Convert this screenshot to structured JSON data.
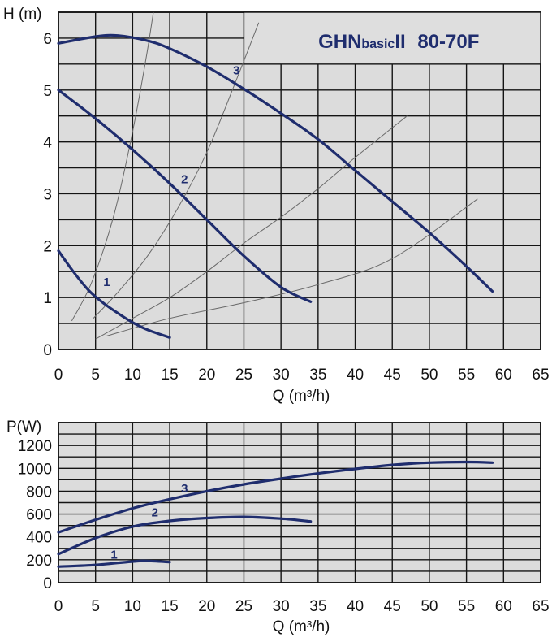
{
  "colors": {
    "plot_bg": "#dcdcdc",
    "grid": "#141414",
    "curve": "#1f2d6e",
    "system_curve": "#6a6a6a",
    "title": "#1f2d6e",
    "title_box": "#dedede"
  },
  "title": {
    "prefix": "GHN",
    "small": "basic",
    "suffix": "II",
    "model": "80-70F"
  },
  "chart_data": [
    {
      "type": "line",
      "name": "head",
      "xlabel": "Q (m³/h)",
      "ylabel": "H (m)",
      "xlim": [
        0,
        65
      ],
      "ylim": [
        0,
        6.5
      ],
      "xticks": [
        0,
        5,
        10,
        15,
        20,
        25,
        30,
        35,
        40,
        45,
        50,
        55,
        60,
        65
      ],
      "yticks": [
        0,
        1,
        2,
        3,
        4,
        5,
        6
      ],
      "grid": true,
      "series": [
        {
          "name": "1",
          "label_at": [
            6.5,
            1.22
          ],
          "points": [
            [
              0,
              1.9
            ],
            [
              2,
              1.5
            ],
            [
              4,
              1.15
            ],
            [
              6,
              0.9
            ],
            [
              8,
              0.7
            ],
            [
              10,
              0.52
            ],
            [
              12,
              0.38
            ],
            [
              15,
              0.23
            ]
          ]
        },
        {
          "name": "2",
          "label_at": [
            17,
            3.2
          ],
          "points": [
            [
              0,
              5.0
            ],
            [
              5,
              4.45
            ],
            [
              10,
              3.85
            ],
            [
              15,
              3.2
            ],
            [
              20,
              2.5
            ],
            [
              25,
              1.8
            ],
            [
              30,
              1.2
            ],
            [
              34,
              0.92
            ]
          ]
        },
        {
          "name": "3",
          "label_at": [
            24,
            5.3
          ],
          "points": [
            [
              0,
              5.9
            ],
            [
              5,
              6.03
            ],
            [
              8,
              6.05
            ],
            [
              12,
              5.95
            ],
            [
              15,
              5.8
            ],
            [
              20,
              5.45
            ],
            [
              25,
              5.02
            ],
            [
              30,
              4.55
            ],
            [
              35,
              4.05
            ],
            [
              40,
              3.45
            ],
            [
              45,
              2.85
            ],
            [
              50,
              2.25
            ],
            [
              55,
              1.6
            ],
            [
              58.5,
              1.12
            ]
          ]
        }
      ],
      "system_curves": [
        [
          [
            1.8,
            0.55
          ],
          [
            4.5,
            1.3
          ],
          [
            7.5,
            2.6
          ],
          [
            10,
            4.2
          ],
          [
            11.8,
            5.6
          ],
          [
            12.8,
            6.5
          ]
        ],
        [
          [
            4.7,
            0.6
          ],
          [
            8,
            1.1
          ],
          [
            12,
            1.8
          ],
          [
            16,
            2.7
          ],
          [
            20,
            3.8
          ],
          [
            24,
            5.2
          ],
          [
            27,
            6.3
          ]
        ],
        [
          [
            5,
            0.2
          ],
          [
            10,
            0.6
          ],
          [
            15,
            1.0
          ],
          [
            20,
            1.5
          ],
          [
            25,
            2.05
          ],
          [
            30,
            2.55
          ],
          [
            35,
            3.1
          ],
          [
            40,
            3.7
          ],
          [
            47,
            4.5
          ]
        ],
        [
          [
            6.5,
            0.26
          ],
          [
            15,
            0.6
          ],
          [
            25,
            0.9
          ],
          [
            35,
            1.25
          ],
          [
            45,
            1.75
          ],
          [
            56.5,
            2.9
          ]
        ]
      ]
    },
    {
      "type": "line",
      "name": "power",
      "xlabel": "Q (m³/h)",
      "ylabel": "P(W)",
      "xlim": [
        0,
        65
      ],
      "ylim": [
        0,
        1400
      ],
      "xticks": [
        0,
        5,
        10,
        15,
        20,
        25,
        30,
        35,
        40,
        45,
        50,
        55,
        60,
        65
      ],
      "yticks": [
        0,
        200,
        400,
        600,
        800,
        1000,
        1200
      ],
      "grid": true,
      "series": [
        {
          "name": "1",
          "label_at": [
            7.5,
            210
          ],
          "points": [
            [
              0,
              140
            ],
            [
              5,
              155
            ],
            [
              10,
              185
            ],
            [
              12,
              190
            ],
            [
              15,
              180
            ]
          ]
        },
        {
          "name": "2",
          "label_at": [
            13,
            580
          ],
          "points": [
            [
              0,
              250
            ],
            [
              5,
              390
            ],
            [
              10,
              490
            ],
            [
              15,
              540
            ],
            [
              20,
              565
            ],
            [
              25,
              575
            ],
            [
              30,
              560
            ],
            [
              34,
              535
            ]
          ]
        },
        {
          "name": "3",
          "label_at": [
            17,
            790
          ],
          "points": [
            [
              0,
              440
            ],
            [
              5,
              550
            ],
            [
              10,
              650
            ],
            [
              15,
              730
            ],
            [
              20,
              800
            ],
            [
              25,
              860
            ],
            [
              30,
              910
            ],
            [
              35,
              955
            ],
            [
              40,
              995
            ],
            [
              45,
              1030
            ],
            [
              50,
              1050
            ],
            [
              55,
              1055
            ],
            [
              58.5,
              1050
            ]
          ]
        }
      ]
    }
  ]
}
